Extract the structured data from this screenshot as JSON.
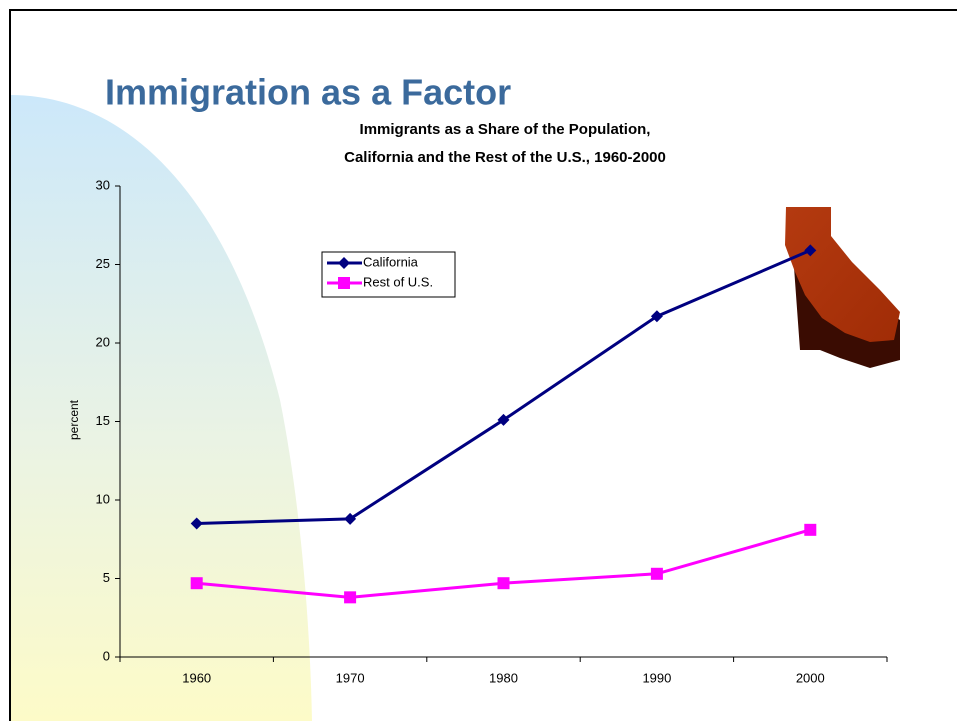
{
  "slide_title": "Immigration as a Factor",
  "chart_data": {
    "type": "line",
    "title": [
      "Immigrants as a Share of the Population,",
      "California and the Rest of the U.S., 1960-2000"
    ],
    "ylabel": "percent",
    "categories": [
      "1960",
      "1970",
      "1980",
      "1990",
      "2000"
    ],
    "series": [
      {
        "name": "California",
        "color": "#000080",
        "marker": "diamond",
        "values": [
          8.5,
          8.8,
          15.1,
          21.7,
          25.9
        ]
      },
      {
        "name": "Rest of U.S.",
        "color": "#ff00ff",
        "marker": "square",
        "values": [
          4.7,
          3.8,
          4.7,
          5.3,
          8.1
        ]
      }
    ],
    "ylim": [
      0,
      30
    ],
    "yticks": [
      0,
      5,
      10,
      15,
      20,
      25,
      30
    ],
    "grid": false
  }
}
